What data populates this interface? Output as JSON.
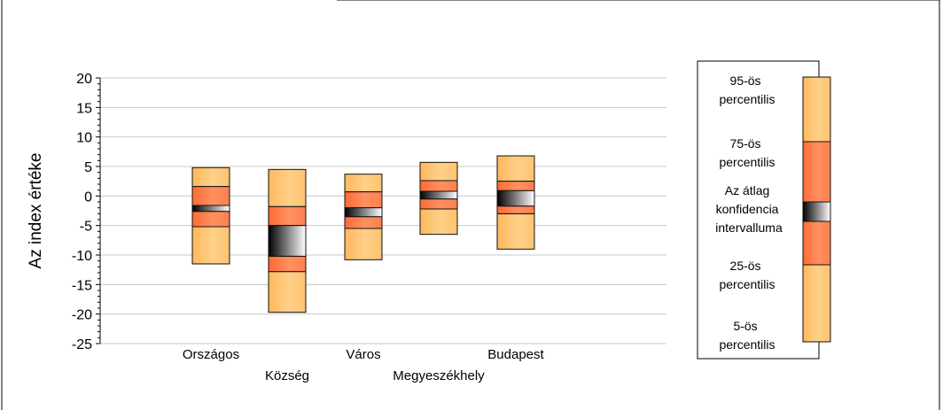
{
  "chart_data": {
    "type": "box",
    "ylabel": "Az index értéke",
    "ylim": [
      -25,
      20
    ],
    "yticks": [
      20,
      15,
      10,
      5,
      0,
      -5,
      -10,
      -15,
      -20,
      -25
    ],
    "grid": true,
    "legend_position": "right",
    "categories": [
      "Országos",
      "Község",
      "Város",
      "Megyeszékhely",
      "Budapest"
    ],
    "boxes": [
      {
        "category": "Országos",
        "p5": -11.5,
        "p25": -5.2,
        "ci_low": -2.6,
        "ci_high": -1.6,
        "p75": 1.6,
        "p95": 4.8
      },
      {
        "category": "Község",
        "p5": -19.7,
        "p25": -12.8,
        "ci_low": -10.2,
        "ci_high": -5.0,
        "p75": -1.8,
        "p95": 4.5
      },
      {
        "category": "Város",
        "p5": -10.8,
        "p25": -5.5,
        "ci_low": -3.5,
        "ci_high": -2.0,
        "p75": 0.7,
        "p95": 3.7
      },
      {
        "category": "Megyeszékhely",
        "p5": -6.5,
        "p25": -2.2,
        "ci_low": -0.5,
        "ci_high": 0.8,
        "p75": 2.6,
        "p95": 5.7
      },
      {
        "category": "Budapest",
        "p5": -9.0,
        "p25": -3.0,
        "ci_low": -1.7,
        "ci_high": 0.9,
        "p75": 2.5,
        "p95": 6.8
      }
    ],
    "legend": {
      "p95": "95-ös percentilis",
      "p75": "75-ös percentilis",
      "ci": "Az átlag konfidencia intervalluma",
      "p25": "25-ös percentilis",
      "p5": "5-ös percentilis"
    },
    "colors": {
      "outer": "#ffc36e",
      "inner": "#ff7f50",
      "ci_dark": "#000000",
      "ci_light": "#ffffff",
      "stroke": "#111111",
      "grid": "#c8c8c8"
    }
  }
}
